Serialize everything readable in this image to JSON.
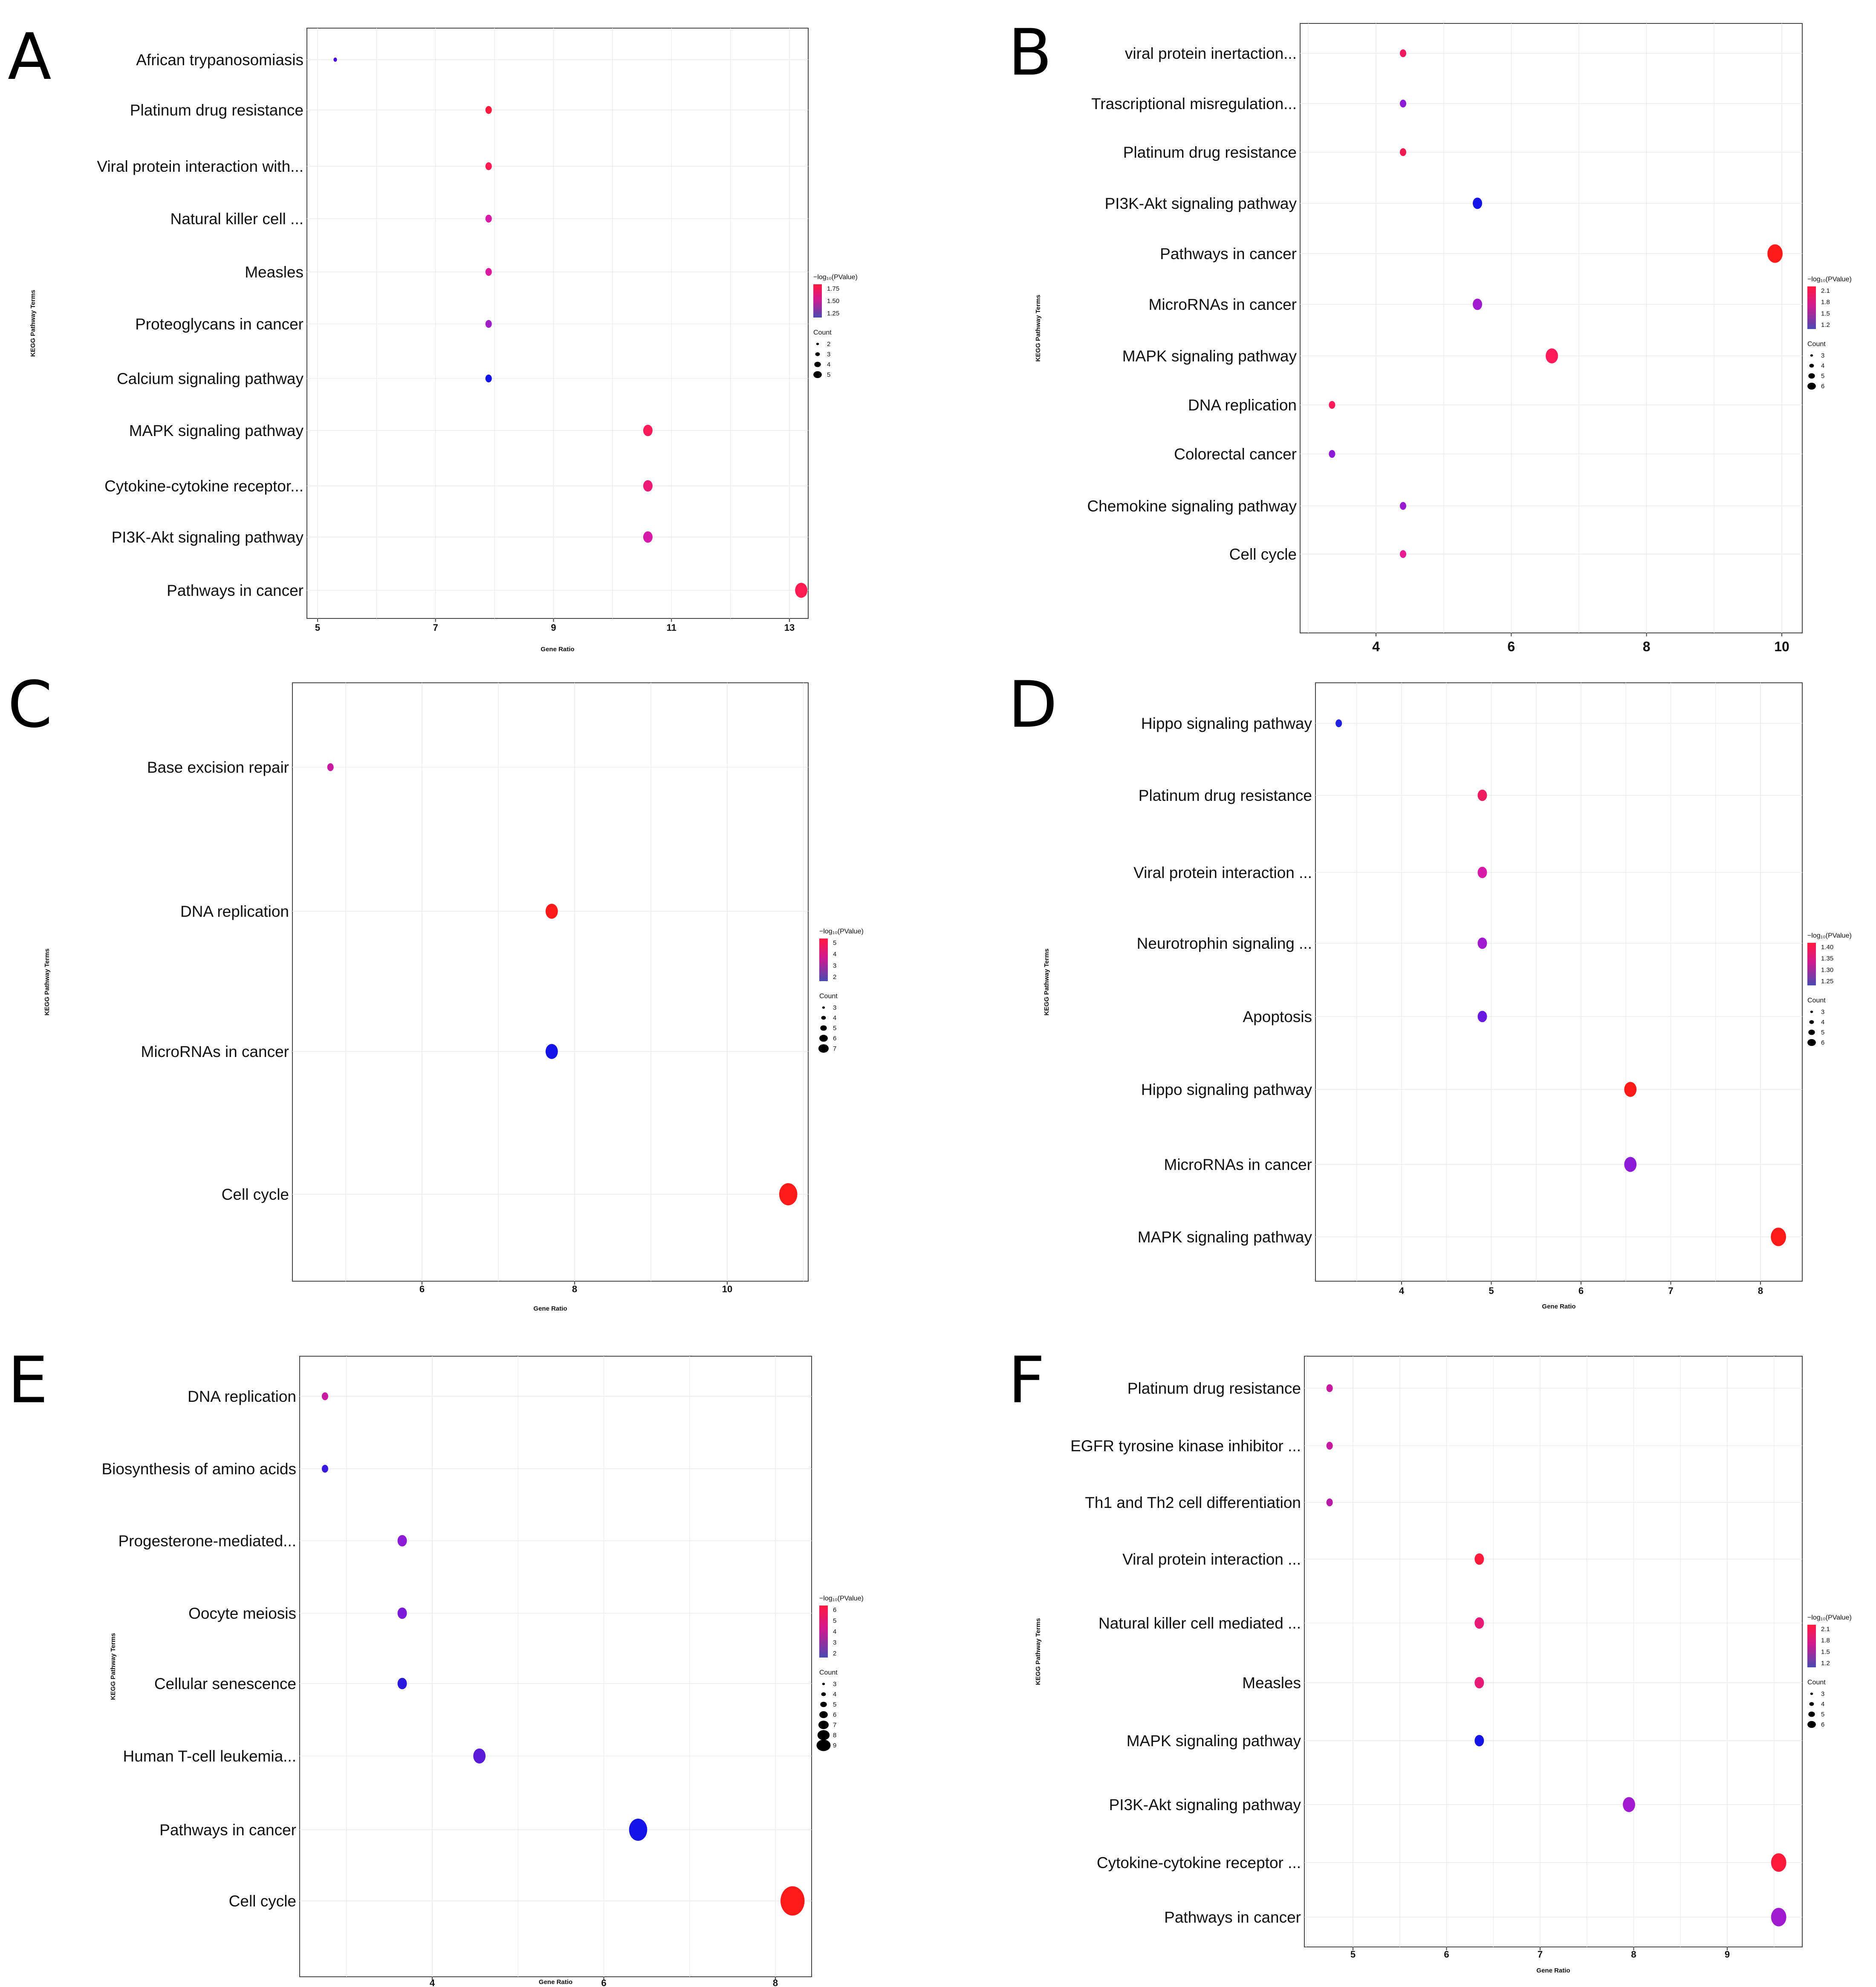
{
  "figure": {
    "shared": {
      "x_title": "Gene Ratio",
      "y_title": "KEGG Pathway Terms",
      "color_legend_title": "−log₁₀(PValue)",
      "size_legend_title": "Count"
    }
  },
  "chart_data": [
    {
      "panel": "A",
      "type": "scatter",
      "xlabel": "Gene Ratio",
      "ylabel": "KEGG Pathway Terms",
      "xlim": [
        4.9,
        13.5
      ],
      "xticks": [
        "5",
        "7",
        "9",
        "11",
        "13"
      ],
      "colorbar_title": "−log₁₀(PValue)",
      "colorbar_ticks": [
        "1.75",
        "1.50",
        "1.25"
      ],
      "size_title": "Count",
      "size_ticks": [
        "2",
        "3",
        "4",
        "5"
      ],
      "points": [
        {
          "term": "African trypanosomiasis",
          "x": 5.3,
          "count": 2,
          "color": "#4a00e0"
        },
        {
          "term": "Platinum drug resistance",
          "x": 7.9,
          "count": 3,
          "color": "#ff1a3c"
        },
        {
          "term": "Viral protein interaction with...",
          "x": 7.9,
          "count": 3,
          "color": "#ff1a50"
        },
        {
          "term": "Natural killer cell ...",
          "x": 7.9,
          "count": 3,
          "color": "#d81aa8"
        },
        {
          "term": "Measles",
          "x": 7.9,
          "count": 3,
          "color": "#dc1aa0"
        },
        {
          "term": "Proteoglycans in cancer",
          "x": 7.9,
          "count": 3,
          "color": "#a020c8"
        },
        {
          "term": "Calcium signaling pathway",
          "x": 7.9,
          "count": 3,
          "color": "#1414e8"
        },
        {
          "term": "MAPK signaling pathway",
          "x": 10.6,
          "count": 4,
          "color": "#ff1a5a"
        },
        {
          "term": "Cytokine-cytokine receptor...",
          "x": 10.6,
          "count": 4,
          "color": "#ee1a78"
        },
        {
          "term": "PI3K-Akt signaling pathway",
          "x": 10.6,
          "count": 4,
          "color": "#d81aa8"
        },
        {
          "term": "Pathways in cancer",
          "x": 13.2,
          "count": 5,
          "color": "#ff1a50"
        }
      ]
    },
    {
      "panel": "B",
      "type": "scatter",
      "xlabel": "",
      "ylabel": "KEGG Pathway Terms",
      "xlim": [
        3.0,
        10.4
      ],
      "xticks": [
        "4",
        "6",
        "8",
        "10"
      ],
      "colorbar_title": "−log₁₀(PValue)",
      "colorbar_ticks": [
        "2.1",
        "1.8",
        "1.5",
        "1.2"
      ],
      "size_title": "Count",
      "size_ticks": [
        "3",
        "4",
        "5",
        "6"
      ],
      "points": [
        {
          "term": "viral protein inertaction...",
          "x": 4.4,
          "count": 3,
          "color": "#f01a60"
        },
        {
          "term": "Trascriptional misregulation...",
          "x": 4.4,
          "count": 3,
          "color": "#8c1ad6"
        },
        {
          "term": "Platinum drug resistance",
          "x": 4.4,
          "count": 3,
          "color": "#f01a50"
        },
        {
          "term": "PI3K-Akt signaling pathway",
          "x": 5.5,
          "count": 4,
          "color": "#1414e8"
        },
        {
          "term": "Pathways in cancer",
          "x": 9.9,
          "count": 6,
          "color": "#ff1a1a"
        },
        {
          "term": "MicroRNAs in cancer",
          "x": 5.5,
          "count": 4,
          "color": "#a01ad0"
        },
        {
          "term": "MAPK signaling pathway",
          "x": 6.6,
          "count": 5,
          "color": "#ff1a5a"
        },
        {
          "term": "DNA replication",
          "x": 3.35,
          "count": 3,
          "color": "#ff1a5a"
        },
        {
          "term": "Colorectal cancer",
          "x": 3.35,
          "count": 3,
          "color": "#8c1ad6"
        },
        {
          "term": "Chemokine signaling pathway",
          "x": 4.4,
          "count": 3,
          "color": "#9a1ad4"
        },
        {
          "term": "Cell cycle",
          "x": 4.4,
          "count": 3,
          "color": "#e81a90"
        }
      ]
    },
    {
      "panel": "C",
      "type": "scatter",
      "xlabel": "Gene Ratio",
      "ylabel": "KEGG Pathway Terms",
      "xlim": [
        4.5,
        11.1
      ],
      "xticks": [
        "6",
        "8",
        "10"
      ],
      "colorbar_title": "−log₁₀(PValue)",
      "colorbar_ticks": [
        "5",
        "4",
        "3",
        "2"
      ],
      "size_title": "Count",
      "size_ticks": [
        "3",
        "4",
        "5",
        "6",
        "7"
      ],
      "points": [
        {
          "term": "Base excision repair",
          "x": 4.8,
          "count": 3,
          "color": "#c81aa0"
        },
        {
          "term": "DNA replication",
          "x": 7.7,
          "count": 5,
          "color": "#ff1a1a"
        },
        {
          "term": "MicroRNAs in cancer",
          "x": 7.7,
          "count": 5,
          "color": "#1414e8"
        },
        {
          "term": "Cell cycle",
          "x": 10.8,
          "count": 7,
          "color": "#ff1a1a"
        }
      ]
    },
    {
      "panel": "D",
      "type": "scatter",
      "xlabel": "Gene Ratio",
      "ylabel": "KEGG Pathway Terms",
      "xlim": [
        3.0,
        8.45
      ],
      "xticks": [
        "4",
        "5",
        "6",
        "7",
        "8"
      ],
      "colorbar_title": "−log₁₀(PValue)",
      "colorbar_ticks": [
        "1.40",
        "1.35",
        "1.30",
        "1.25"
      ],
      "size_title": "Count",
      "size_ticks": [
        "3",
        "4",
        "5",
        "6"
      ],
      "points": [
        {
          "term": "Hippo signaling pathway",
          "x": 3.3,
          "count": 3,
          "color": "#2020e0"
        },
        {
          "term": "Platinum drug resistance",
          "x": 4.9,
          "count": 4,
          "color": "#f01a60"
        },
        {
          "term": "Viral protein interaction ...",
          "x": 4.9,
          "count": 4,
          "color": "#d81aa8"
        },
        {
          "term": "Neurotrophin signaling ...",
          "x": 4.9,
          "count": 4,
          "color": "#a01ad0"
        },
        {
          "term": "Apoptosis",
          "x": 4.9,
          "count": 4,
          "color": "#6a1ae0"
        },
        {
          "term": "Hippo signaling pathway",
          "x": 6.55,
          "count": 5,
          "color": "#ff1a1a"
        },
        {
          "term": "MicroRNAs in cancer",
          "x": 6.55,
          "count": 5,
          "color": "#8c1ad6"
        },
        {
          "term": "MAPK signaling pathway",
          "x": 8.2,
          "count": 6,
          "color": "#ff1a1a"
        }
      ]
    },
    {
      "panel": "E",
      "type": "scatter",
      "xlabel": "Gene Ratio",
      "ylabel": "KEGG Pathway Terms",
      "xlim": [
        2.5,
        8.5
      ],
      "xticks": [
        "4",
        "6",
        "8"
      ],
      "colorbar_title": "−log₁₀(PValue)",
      "colorbar_ticks": [
        "6",
        "5",
        "4",
        "3",
        "2"
      ],
      "size_title": "Count",
      "size_ticks": [
        "3",
        "4",
        "5",
        "6",
        "7",
        "8",
        "9"
      ],
      "points": [
        {
          "term": "DNA replication",
          "x": 2.75,
          "count": 3,
          "color": "#c81aa0"
        },
        {
          "term": "Biosynthesis of amino acids",
          "x": 2.75,
          "count": 3,
          "color": "#3a1ae0"
        },
        {
          "term": "Progesterone-mediated...",
          "x": 3.65,
          "count": 4,
          "color": "#8c1ad6"
        },
        {
          "term": "Oocyte meiosis",
          "x": 3.65,
          "count": 4,
          "color": "#7a1ad8"
        },
        {
          "term": "Cellular senescence",
          "x": 3.65,
          "count": 4,
          "color": "#2a1ae0"
        },
        {
          "term": "Human T-cell leukemia...",
          "x": 4.55,
          "count": 5,
          "color": "#5a1ad8"
        },
        {
          "term": "Pathways in cancer",
          "x": 6.4,
          "count": 7,
          "color": "#1414e8"
        },
        {
          "term": "Cell cycle",
          "x": 8.2,
          "count": 9,
          "color": "#ff1a1a"
        }
      ]
    },
    {
      "panel": "F",
      "type": "scatter",
      "xlabel": "Gene Ratio",
      "ylabel": "KEGG Pathway Terms",
      "xlim": [
        4.5,
        9.8
      ],
      "xticks": [
        "5",
        "6",
        "7",
        "8",
        "9"
      ],
      "colorbar_title": "−log₁₀(PValue)",
      "colorbar_ticks": [
        "2.1",
        "1.8",
        "1.5",
        "1.2"
      ],
      "size_title": "Count",
      "size_ticks": [
        "3",
        "4",
        "5",
        "6"
      ],
      "points": [
        {
          "term": "Platinum drug resistance",
          "x": 4.75,
          "count": 3,
          "color": "#c81aa0"
        },
        {
          "term": "EGFR tyrosine kinase inhibitor ...",
          "x": 4.75,
          "count": 3,
          "color": "#c81aa0"
        },
        {
          "term": "Th1 and Th2 cell differentiation",
          "x": 4.75,
          "count": 3,
          "color": "#b81aa8"
        },
        {
          "term": "Viral protein interaction ...",
          "x": 6.35,
          "count": 4,
          "color": "#ff1a3c"
        },
        {
          "term": "Natural killer cell mediated ...",
          "x": 6.35,
          "count": 4,
          "color": "#e81a78"
        },
        {
          "term": "Measles",
          "x": 6.35,
          "count": 4,
          "color": "#e81a78"
        },
        {
          "term": "MAPK signaling pathway",
          "x": 6.35,
          "count": 4,
          "color": "#1414e8"
        },
        {
          "term": "PI3K-Akt signaling pathway",
          "x": 7.95,
          "count": 5,
          "color": "#a01ad0"
        },
        {
          "term": "Cytokine-cytokine receptor ...",
          "x": 9.55,
          "count": 6,
          "color": "#ff1a3c"
        },
        {
          "term": "Pathways in cancer",
          "x": 9.55,
          "count": 6,
          "color": "#a01ad0"
        }
      ]
    }
  ]
}
